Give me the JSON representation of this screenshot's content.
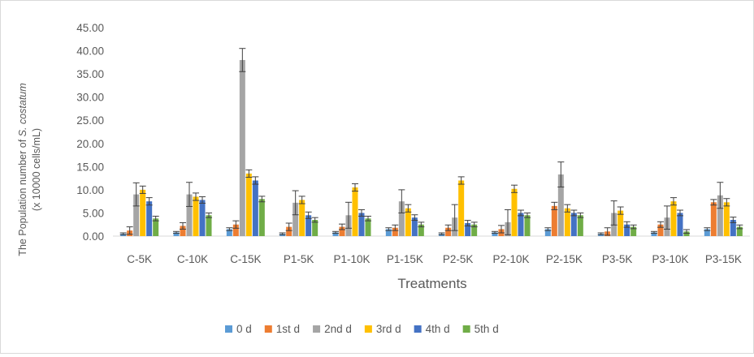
{
  "chart_data": {
    "type": "bar",
    "title": "",
    "xlabel": "Treatments",
    "ylabel_prefix": "The Population number of ",
    "ylabel_species": "S. costatum",
    "ylabel_units": "(x 10000 cells/mL)",
    "ylim": [
      0,
      45
    ],
    "y_ticks": [
      "0.00",
      "5.00",
      "10.00",
      "15.00",
      "20.00",
      "25.00",
      "30.00",
      "35.00",
      "40.00",
      "45.00"
    ],
    "y_tick_values": [
      0,
      5,
      10,
      15,
      20,
      25,
      30,
      35,
      40,
      45
    ],
    "grid": false,
    "legend_position": "bottom",
    "categories": [
      "C-5K",
      "C-10K",
      "C-15K",
      "P1-5K",
      "P1-10K",
      "P1-15K",
      "P2-5K",
      "P2-10K",
      "P2-15K",
      "P3-5K",
      "P3-10K",
      "P3-15K"
    ],
    "series": [
      {
        "name": "0 d",
        "color": "#5b9bd5",
        "values": [
          0.5,
          0.8,
          1.5,
          0.5,
          0.8,
          1.5,
          0.5,
          0.8,
          1.5,
          0.5,
          0.8,
          1.5
        ],
        "errors": [
          0.2,
          0.2,
          0.3,
          0.2,
          0.2,
          0.3,
          0.2,
          0.2,
          0.3,
          0.2,
          0.2,
          0.3
        ]
      },
      {
        "name": "1st d",
        "color": "#ed7d31",
        "values": [
          1.2,
          2.2,
          2.5,
          2.0,
          2.0,
          1.8,
          1.8,
          1.5,
          6.5,
          1.0,
          2.5,
          7.3
        ],
        "errors": [
          0.8,
          0.7,
          0.8,
          0.8,
          0.6,
          0.6,
          0.6,
          0.8,
          0.8,
          0.8,
          0.6,
          0.6
        ]
      },
      {
        "name": "2nd d",
        "color": "#a5a5a5",
        "values": [
          9.0,
          9.0,
          38.0,
          7.2,
          4.5,
          7.5,
          4.0,
          3.0,
          13.3,
          5.0,
          4.0,
          8.8
        ],
        "errors": [
          2.5,
          2.6,
          2.5,
          2.6,
          2.8,
          2.5,
          2.8,
          2.7,
          2.7,
          2.6,
          2.5,
          2.8
        ]
      },
      {
        "name": "3rd d",
        "color": "#ffc000",
        "values": [
          10.0,
          8.5,
          13.5,
          7.8,
          10.5,
          6.0,
          12.0,
          10.2,
          6.0,
          5.5,
          7.5,
          7.3
        ],
        "errors": [
          0.8,
          0.8,
          0.8,
          0.8,
          0.8,
          0.8,
          0.8,
          0.8,
          0.8,
          0.8,
          0.8,
          0.8
        ]
      },
      {
        "name": "4th d",
        "color": "#4472c4",
        "values": [
          7.5,
          7.8,
          12.0,
          4.5,
          5.0,
          4.0,
          2.8,
          5.0,
          5.0,
          2.5,
          5.0,
          3.5
        ],
        "errors": [
          0.8,
          0.7,
          0.8,
          0.7,
          0.7,
          0.6,
          0.6,
          0.6,
          0.6,
          0.6,
          0.6,
          0.6
        ]
      },
      {
        "name": "5th d",
        "color": "#70ad47",
        "values": [
          3.8,
          4.5,
          8.0,
          3.5,
          3.8,
          2.5,
          2.5,
          4.5,
          4.5,
          2.0,
          1.0,
          2.0
        ],
        "errors": [
          0.5,
          0.5,
          0.6,
          0.5,
          0.5,
          0.5,
          0.5,
          0.5,
          0.5,
          0.4,
          0.4,
          0.4
        ]
      }
    ]
  }
}
